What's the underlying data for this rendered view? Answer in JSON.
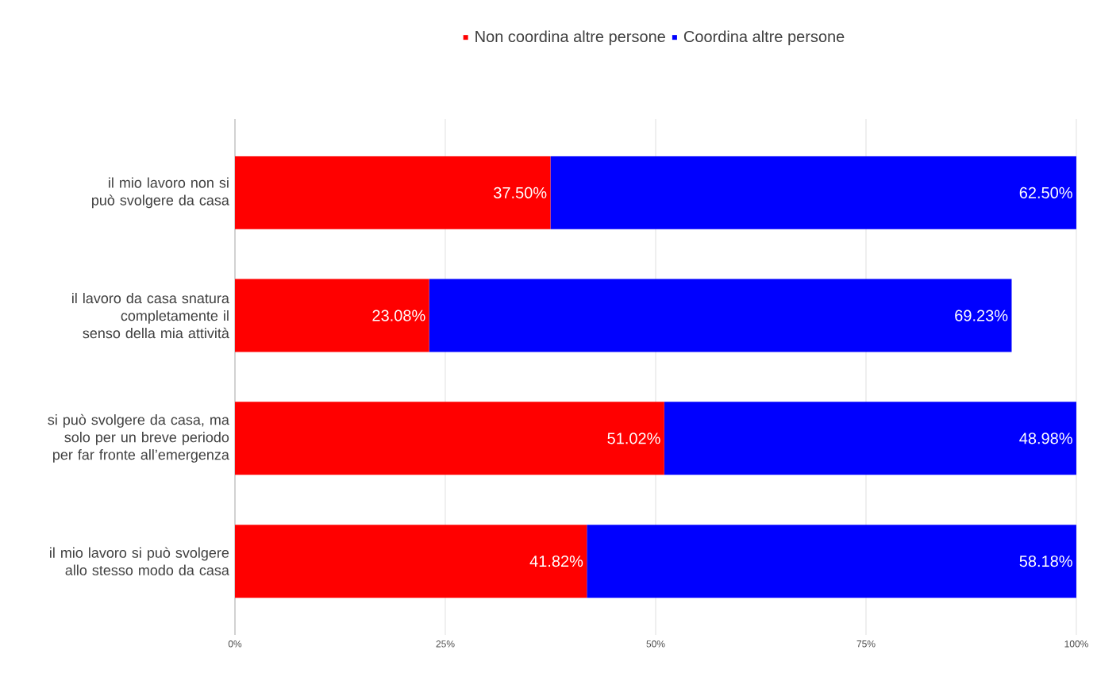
{
  "chart_data": {
    "type": "bar",
    "orientation": "horizontal",
    "stacked": true,
    "categories": [
      "il mio lavoro non si può svolgere da casa",
      "il lavoro da casa snatura completamente il senso della mia attività",
      "si può svolgere da casa, ma solo per un breve periodo per far fronte all’emergenza",
      "il mio lavoro si può svolgere allo stesso modo da casa"
    ],
    "series": [
      {
        "name": "Non coordina altre persone",
        "color": "#ff0000",
        "values": [
          37.5,
          23.08,
          51.02,
          41.82
        ],
        "value_labels": [
          "37.50%",
          "23.08%",
          "51.02%",
          "41.82%"
        ]
      },
      {
        "name": "Coordina altre persone",
        "color": "#0000ff",
        "values": [
          62.5,
          69.23,
          48.98,
          58.18
        ],
        "value_labels": [
          "62.50%",
          "69.23%",
          "48.98%",
          "58.18%"
        ]
      }
    ],
    "xlim": [
      0,
      100
    ],
    "xticks": [
      {
        "value": 0,
        "label": "0%"
      },
      {
        "value": 25,
        "label": "25%"
      },
      {
        "value": 50,
        "label": "50%"
      },
      {
        "value": 75,
        "label": "75%"
      },
      {
        "value": 100,
        "label": "100%"
      }
    ],
    "grid": "x",
    "legend": "top"
  }
}
